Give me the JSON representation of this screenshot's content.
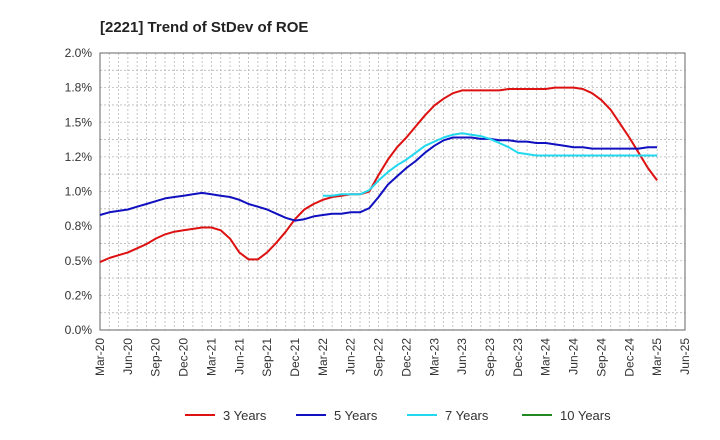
{
  "chart_data": {
    "type": "line",
    "title": "[2221]  Trend of StDev of ROE",
    "xlabel": "",
    "ylabel": "",
    "ylim": [
      0,
      0.02
    ],
    "y_ticks": [
      0,
      0.0025,
      0.005,
      0.0075,
      0.01,
      0.0125,
      0.015,
      0.0175,
      0.02
    ],
    "y_tick_labels": [
      "0.0%",
      "0.2%",
      "0.5%",
      "0.8%",
      "1.0%",
      "1.2%",
      "1.5%",
      "1.8%",
      "2.0%"
    ],
    "x_tick_labels": [
      "Mar-20",
      "Jun-20",
      "Sep-20",
      "Dec-20",
      "Mar-21",
      "Jun-21",
      "Sep-21",
      "Dec-21",
      "Mar-22",
      "Jun-22",
      "Sep-22",
      "Dec-22",
      "Mar-23",
      "Jun-23",
      "Sep-23",
      "Dec-23",
      "Mar-24",
      "Jun-24",
      "Sep-24",
      "Dec-24",
      "Mar-25",
      "Jun-25"
    ],
    "grid": true,
    "legend_position": "bottom",
    "series": [
      {
        "name": "3 Years",
        "color": "#dd1111",
        "x": [
          "Mar-20",
          "Apr-20",
          "May-20",
          "Jun-20",
          "Jul-20",
          "Aug-20",
          "Sep-20",
          "Oct-20",
          "Nov-20",
          "Dec-20",
          "Jan-21",
          "Feb-21",
          "Mar-21",
          "Apr-21",
          "May-21",
          "Jun-21",
          "Jul-21",
          "Aug-21",
          "Sep-21",
          "Oct-21",
          "Nov-21",
          "Dec-21",
          "Jan-22",
          "Feb-22",
          "Mar-22",
          "Apr-22",
          "May-22",
          "Jun-22",
          "Jul-22",
          "Aug-22",
          "Sep-22",
          "Oct-22",
          "Nov-22",
          "Dec-22",
          "Jan-23",
          "Feb-23",
          "Mar-23",
          "Apr-23",
          "May-23",
          "Jun-23",
          "Jul-23",
          "Aug-23",
          "Sep-23",
          "Oct-23",
          "Nov-23",
          "Dec-23",
          "Jan-24",
          "Feb-24",
          "Mar-24",
          "Apr-24",
          "May-24",
          "Jun-24",
          "Jul-24",
          "Aug-24",
          "Sep-24",
          "Oct-24",
          "Nov-24",
          "Dec-24",
          "Jan-25",
          "Feb-25",
          "Mar-25"
        ],
        "values": [
          0.0049,
          0.0052,
          0.0054,
          0.0056,
          0.0059,
          0.0062,
          0.0066,
          0.0069,
          0.0071,
          0.0072,
          0.0073,
          0.0074,
          0.0074,
          0.0072,
          0.0066,
          0.0056,
          0.0051,
          0.0051,
          0.0056,
          0.0063,
          0.0071,
          0.008,
          0.0087,
          0.0091,
          0.0094,
          0.0096,
          0.0097,
          0.0098,
          0.0098,
          0.01,
          0.0112,
          0.0123,
          0.0132,
          0.0139,
          0.0147,
          0.0155,
          0.0162,
          0.0167,
          0.0171,
          0.0173,
          0.0173,
          0.0173,
          0.0173,
          0.0173,
          0.0174,
          0.0174,
          0.0174,
          0.0174,
          0.0174,
          0.0175,
          0.0175,
          0.0175,
          0.0174,
          0.0171,
          0.0166,
          0.0159,
          0.0149,
          0.0139,
          0.0128,
          0.0117,
          0.0108
        ]
      },
      {
        "name": "5 Years",
        "color": "#1010c0",
        "x": [
          "Mar-20",
          "Apr-20",
          "May-20",
          "Jun-20",
          "Jul-20",
          "Aug-20",
          "Sep-20",
          "Oct-20",
          "Nov-20",
          "Dec-20",
          "Jan-21",
          "Feb-21",
          "Mar-21",
          "Apr-21",
          "May-21",
          "Jun-21",
          "Jul-21",
          "Aug-21",
          "Sep-21",
          "Oct-21",
          "Nov-21",
          "Dec-21",
          "Jan-22",
          "Feb-22",
          "Mar-22",
          "Apr-22",
          "May-22",
          "Jun-22",
          "Jul-22",
          "Aug-22",
          "Sep-22",
          "Oct-22",
          "Nov-22",
          "Dec-22",
          "Jan-23",
          "Feb-23",
          "Mar-23",
          "Apr-23",
          "May-23",
          "Jun-23",
          "Jul-23",
          "Aug-23",
          "Sep-23",
          "Oct-23",
          "Nov-23",
          "Dec-23",
          "Jan-24",
          "Feb-24",
          "Mar-24",
          "Apr-24",
          "May-24",
          "Jun-24",
          "Jul-24",
          "Aug-24",
          "Sep-24",
          "Oct-24",
          "Nov-24",
          "Dec-24",
          "Jan-25",
          "Feb-25",
          "Mar-25"
        ],
        "values": [
          0.0083,
          0.0085,
          0.0086,
          0.0087,
          0.0089,
          0.0091,
          0.0093,
          0.0095,
          0.0096,
          0.0097,
          0.0098,
          0.0099,
          0.0098,
          0.0097,
          0.0096,
          0.0094,
          0.0091,
          0.0089,
          0.0087,
          0.0084,
          0.0081,
          0.0079,
          0.008,
          0.0082,
          0.0083,
          0.0084,
          0.0084,
          0.0085,
          0.0085,
          0.0088,
          0.0096,
          0.0105,
          0.0111,
          0.0117,
          0.0122,
          0.0128,
          0.0133,
          0.0137,
          0.0139,
          0.0139,
          0.0139,
          0.0138,
          0.0138,
          0.0137,
          0.0137,
          0.0136,
          0.0136,
          0.0135,
          0.0135,
          0.0134,
          0.0133,
          0.0132,
          0.0132,
          0.0131,
          0.0131,
          0.0131,
          0.0131,
          0.0131,
          0.0131,
          0.0132,
          0.0132
        ]
      },
      {
        "name": "7 Years",
        "color": "#22d8ee",
        "x": [
          "Mar-22",
          "Apr-22",
          "May-22",
          "Jun-22",
          "Jul-22",
          "Aug-22",
          "Sep-22",
          "Oct-22",
          "Nov-22",
          "Dec-22",
          "Jan-23",
          "Feb-23",
          "Mar-23",
          "Apr-23",
          "May-23",
          "Jun-23",
          "Jul-23",
          "Aug-23",
          "Sep-23",
          "Oct-23",
          "Nov-23",
          "Dec-23",
          "Jan-24",
          "Feb-24",
          "Mar-24",
          "Apr-24",
          "May-24",
          "Jun-24",
          "Jul-24",
          "Aug-24",
          "Sep-24",
          "Oct-24",
          "Nov-24",
          "Dec-24",
          "Jan-25",
          "Feb-25",
          "Mar-25"
        ],
        "values": [
          0.0097,
          0.0097,
          0.0098,
          0.0098,
          0.0098,
          0.0101,
          0.0108,
          0.0114,
          0.0119,
          0.0123,
          0.0128,
          0.0133,
          0.0136,
          0.0139,
          0.0141,
          0.0142,
          0.0141,
          0.014,
          0.0138,
          0.0135,
          0.0132,
          0.0128,
          0.0127,
          0.0126,
          0.0126,
          0.0126,
          0.0126,
          0.0126,
          0.0126,
          0.0126,
          0.0126,
          0.0126,
          0.0126,
          0.0126,
          0.0126,
          0.0126,
          0.0126
        ]
      },
      {
        "name": "10 Years",
        "color": "#228822",
        "x": [],
        "values": []
      }
    ]
  }
}
